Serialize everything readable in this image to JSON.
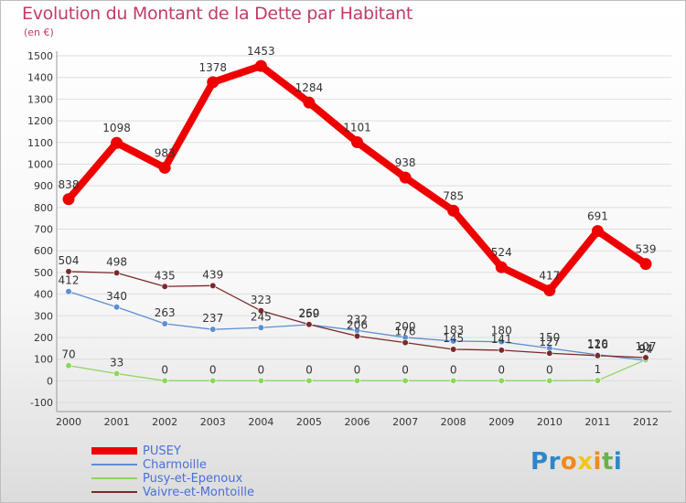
{
  "header": {
    "title": "Evolution du Montant de la Dette par Habitant",
    "subtitle": "(en €)"
  },
  "colors": {
    "axis_text": "#333333",
    "title": "#c43a6a",
    "legend_text": "#4a6fd8",
    "grid": "#dddddd"
  },
  "chart_data": {
    "type": "line",
    "title": "Evolution du Montant de la Dette par Habitant",
    "subtitle": "(en €)",
    "xlabel": "",
    "ylabel": "",
    "x": [
      "2000",
      "2001",
      "2002",
      "2003",
      "2004",
      "2005",
      "2006",
      "2007",
      "2008",
      "2009",
      "2010",
      "2011",
      "2012"
    ],
    "ylim": [
      -100,
      1500
    ],
    "yticks": [
      -100,
      0,
      100,
      200,
      300,
      400,
      500,
      600,
      700,
      800,
      900,
      1000,
      1100,
      1200,
      1300,
      1400,
      1500
    ],
    "grid": "horizontal",
    "legend_position": "bottom-left",
    "series": [
      {
        "name": "PUSEY",
        "color": "#ee0000",
        "values": [
          838,
          1098,
          983,
          1378,
          1453,
          1284,
          1101,
          938,
          785,
          524,
          417,
          691,
          539
        ],
        "labels": [
          "838",
          "1098",
          "983",
          "1378",
          "1453",
          "1284",
          "1101",
          "938",
          "785",
          "524",
          "417",
          "691",
          "539"
        ]
      },
      {
        "name": "Charmoille",
        "color": "#5b8fd0",
        "values": [
          412,
          340,
          263,
          237,
          245,
          259,
          232,
          200,
          183,
          180,
          150,
          120,
          94
        ],
        "labels": [
          "412",
          "340",
          "263",
          "237",
          "245",
          "259",
          "232",
          "200",
          "183",
          "180",
          "150",
          "120",
          "94"
        ]
      },
      {
        "name": "Pusy-et-Epenoux",
        "color": "#8ed65e",
        "values": [
          70,
          33,
          0,
          0,
          0,
          0,
          0,
          0,
          0,
          0,
          0,
          1,
          97
        ],
        "labels": [
          "70",
          "33",
          "0",
          "0",
          "0",
          "0",
          "0",
          "0",
          "0",
          "0",
          "0",
          "1",
          "97"
        ]
      },
      {
        "name": "Vaivre-et-Montoille",
        "color": "#7a2a2a",
        "values": [
          504,
          498,
          435,
          439,
          323,
          260,
          206,
          176,
          145,
          141,
          127,
          116,
          107
        ],
        "labels": [
          "504",
          "498",
          "435",
          "439",
          "323",
          "260",
          "206",
          "176",
          "145",
          "141",
          "127",
          "116",
          "107"
        ]
      }
    ]
  },
  "legend": {
    "items": [
      "PUSEY",
      "Charmoille",
      "Pusy-et-Epenoux",
      "Vaivre-et-Montoille"
    ]
  },
  "logo": {
    "letters": [
      "P",
      "r",
      "o",
      "x",
      "i",
      "t",
      "i"
    ],
    "colors": [
      "#2e86c9",
      "#2e86c9",
      "#ef8a1e",
      "#f2c619",
      "#ef8a1e",
      "#6ab04c",
      "#2e86c9"
    ]
  }
}
